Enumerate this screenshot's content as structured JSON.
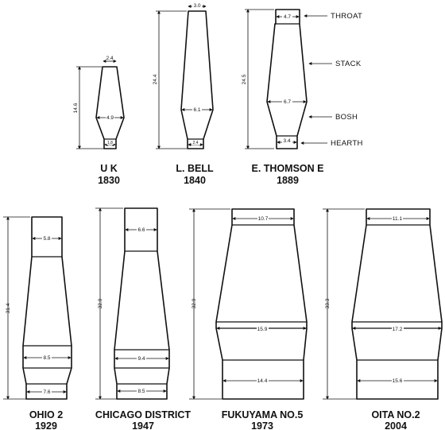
{
  "zone_labels": {
    "throat": "THROAT",
    "stack": "STACK",
    "bosh": "BOSH",
    "hearth": "HEARTH"
  },
  "furnaces": [
    {
      "name": "U K",
      "year": "1830",
      "height": "14.6",
      "throat": "2.4",
      "belly": "4.9",
      "hearth": "1.8"
    },
    {
      "name": "L. BELL",
      "year": "1840",
      "height": "24.4",
      "throat": "3.0",
      "belly": "6.1",
      "hearth": "2.4"
    },
    {
      "name": "E. THOMSON E",
      "year": "1889",
      "height": "24.5",
      "throat": "4.7",
      "belly": "6.7",
      "hearth": "3.4"
    },
    {
      "name": "OHIO 2",
      "year": "1929",
      "height": "31.4",
      "throat": "5.8",
      "belly": "8.5",
      "hearth": "7.6"
    },
    {
      "name": "CHICAGO DISTRICT",
      "year": "1947",
      "height": "32.9",
      "throat": "6.6",
      "belly": "9.4",
      "hearth": "8.5"
    },
    {
      "name": "FUKUYAMA NO.5",
      "year": "1973",
      "height": "32.9",
      "throat": "10.7",
      "belly": "15.9",
      "hearth": "14.4"
    },
    {
      "name": "OITA NO.2",
      "year": "2004",
      "height": "33.3",
      "throat": "11.1",
      "belly": "17.2",
      "hearth": "15.6"
    }
  ]
}
